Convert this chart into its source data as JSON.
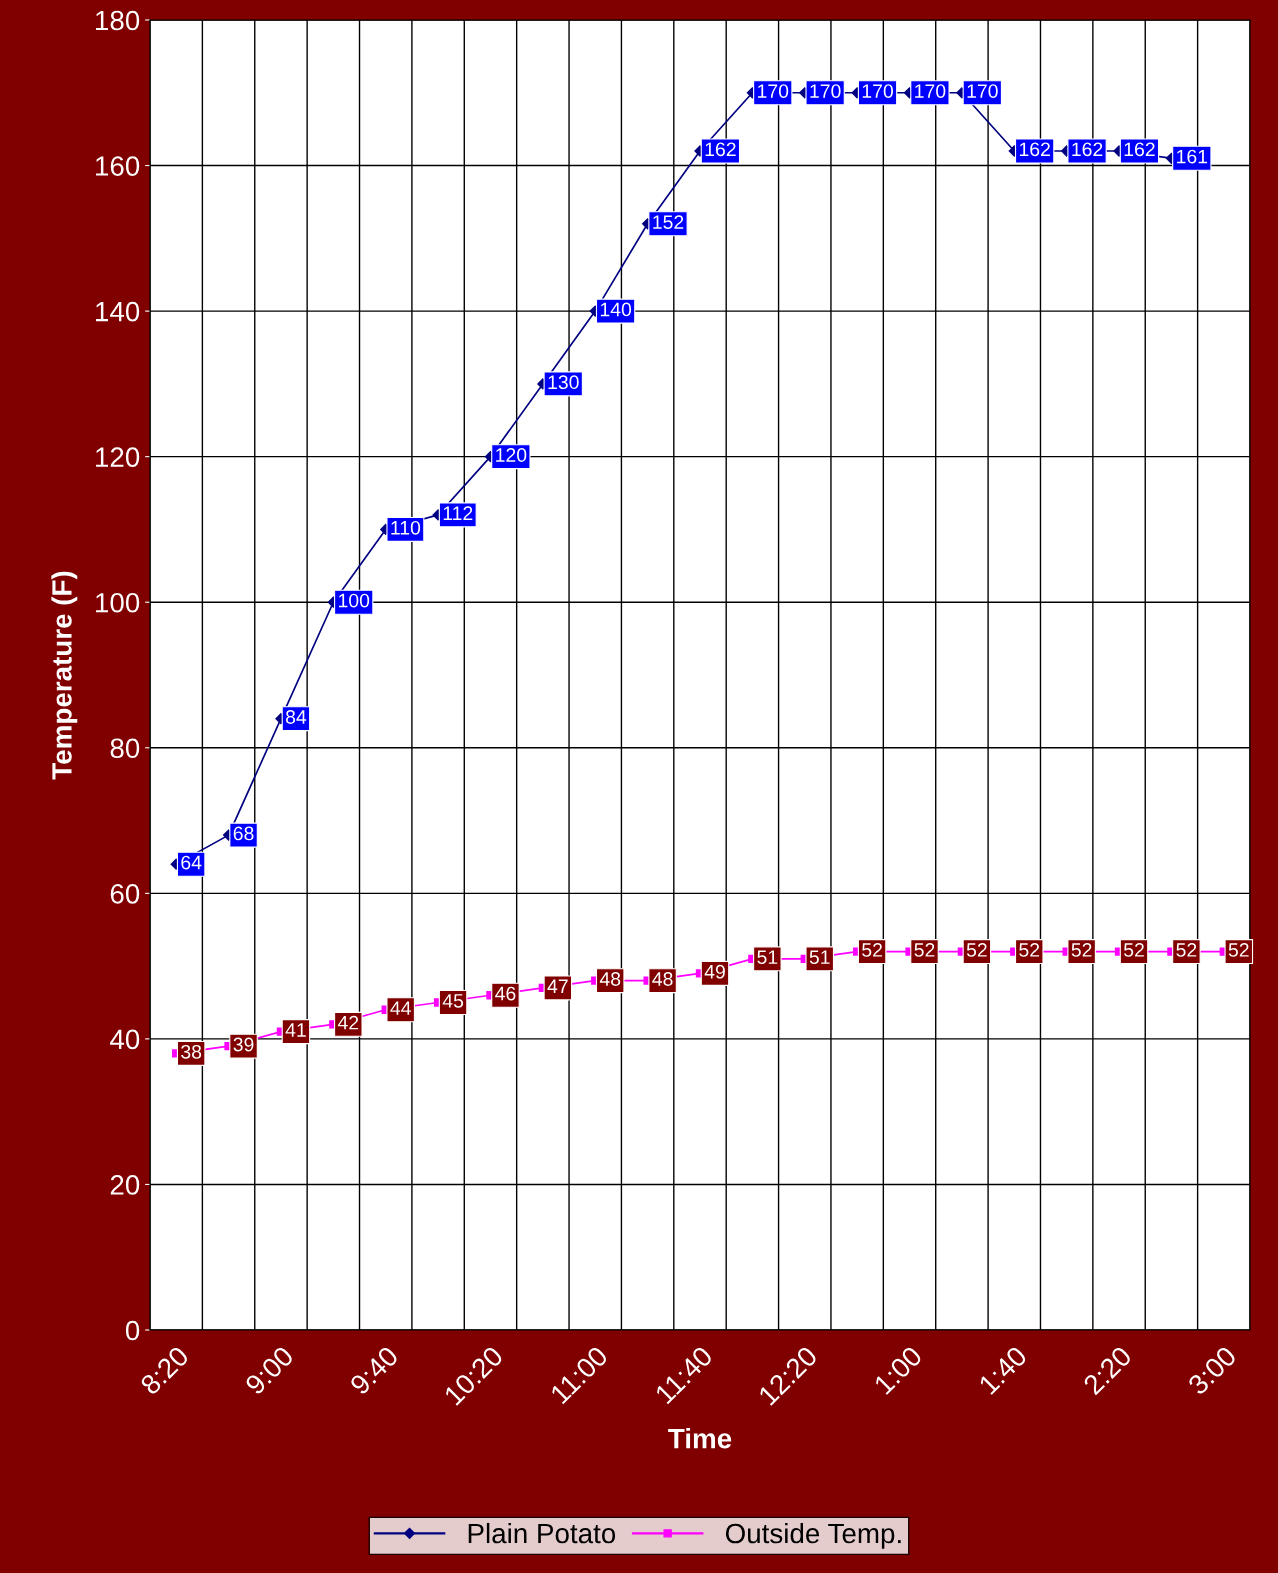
{
  "chart_data": {
    "type": "line",
    "xlabel": "Time",
    "ylabel": "Temperature (F)",
    "categories": [
      "8:20",
      null,
      "9:00",
      null,
      "9:40",
      null,
      "10:20",
      null,
      "11:00",
      null,
      "11:40",
      null,
      "12:20",
      null,
      "1:00",
      null,
      "1:40",
      null,
      "2:20",
      null,
      "3:00"
    ],
    "series": [
      {
        "name": "Plain Potato",
        "color": "#000080",
        "marker": "diamond",
        "values": [
          64,
          68,
          84,
          100,
          110,
          112,
          120,
          130,
          140,
          152,
          162,
          170,
          170,
          170,
          170,
          170,
          162,
          162,
          162,
          161,
          null
        ]
      },
      {
        "name": "Outside Temp.",
        "color": "#ff00ff",
        "marker": "square",
        "values": [
          38,
          39,
          41,
          42,
          44,
          45,
          46,
          47,
          48,
          48,
          49,
          51,
          51,
          52,
          52,
          52,
          52,
          52,
          52,
          52,
          52
        ]
      }
    ],
    "ylim": [
      0,
      180
    ],
    "yticks": [
      0,
      20,
      40,
      60,
      80,
      100,
      120,
      140,
      160,
      180
    ],
    "grid": true,
    "legend": "bottom",
    "data_labels": true,
    "line_style": "solid"
  }
}
